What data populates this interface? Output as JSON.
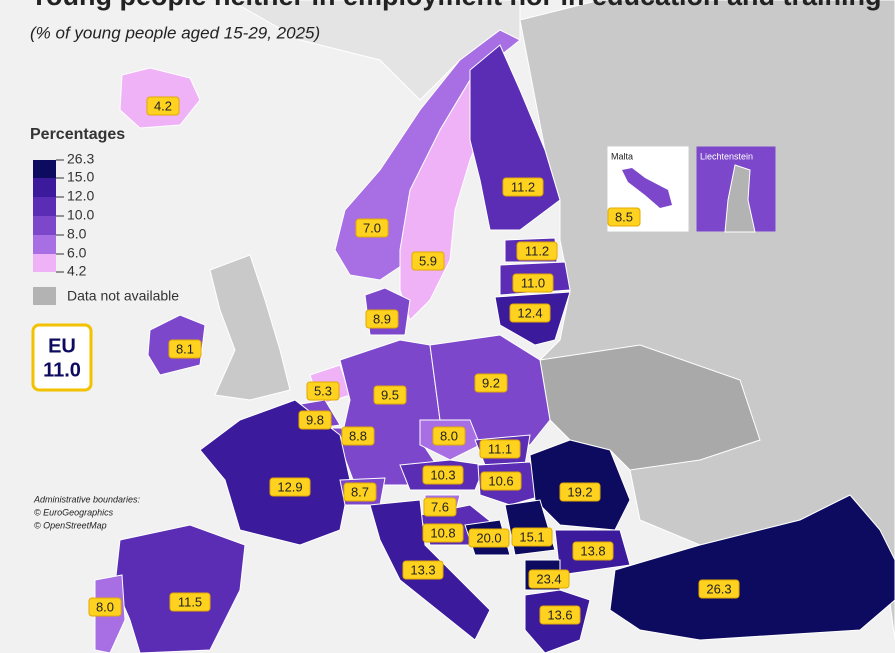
{
  "map": {
    "title": "Young people neither in employment nor in education and training",
    "subtitle": "(% of young people aged 15-29, 2025)",
    "legend": {
      "title": "Percentages",
      "breaks": [
        {
          "value": 26.3,
          "label": "26.3"
        },
        {
          "value": 15,
          "label": "15.0"
        },
        {
          "value": 12,
          "label": "12.0"
        },
        {
          "value": 10,
          "label": "10.0"
        },
        {
          "value": 8,
          "label": "8.0"
        },
        {
          "value": 6,
          "label": "6.0"
        },
        {
          "value": 4.2,
          "label": "4.2"
        }
      ],
      "colors": [
        "#0d0b5f",
        "#3b1a9c",
        "#5b2db5",
        "#7c47cb",
        "#a76fe3",
        "#efb2f7"
      ],
      "na_label": "Data not available",
      "na_color": "#b3b3b3"
    },
    "eu": {
      "label": "EU",
      "value": 11,
      "value_label": "11.0"
    },
    "regions": {
      "values": [
        4.2,
        7,
        5.9,
        11.2,
        11.2,
        11,
        12.4,
        8.9,
        8.1,
        5.3,
        9.8,
        8.8,
        9.5,
        9.2,
        8,
        11.1,
        10.3,
        10.6,
        19.2,
        12.9,
        8.7,
        7.6,
        10.8,
        20,
        15.1,
        13.8,
        23.4,
        13.3,
        13.6,
        26.3,
        11.5,
        8
      ],
      "value_labels": [
        "4.2",
        "7.0",
        "5.9",
        "11.2",
        "11.2",
        "11.0",
        "12.4",
        "8.9",
        "8.1",
        "5.3",
        "9.8",
        "8.8",
        "9.5",
        "9.2",
        "8.0",
        "11.1",
        "10.3",
        "10.6",
        "19.2",
        "12.9",
        "8.7",
        "7.6",
        "10.8",
        "20.0",
        "15.1",
        "13.8",
        "23.4",
        "13.3",
        "13.6",
        "26.3",
        "11.5",
        "8.0"
      ]
    },
    "insets": {
      "malta": {
        "label": "Malta",
        "value": 8.5,
        "value_label": "8.5"
      },
      "liechtenstein": {
        "label": "Liechtenstein"
      }
    },
    "credits": [
      "Administrative boundaries:",
      "© EuroGeographics",
      "© OpenStreetMap"
    ]
  }
}
